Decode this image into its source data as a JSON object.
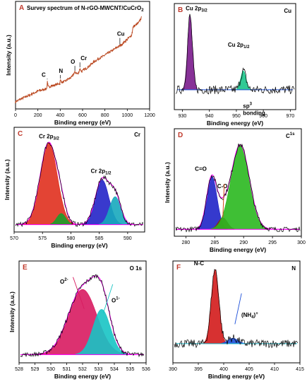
{
  "chart_data": [
    {
      "panel": "A",
      "type": "line",
      "title": "Survey spectrum of N-rGO-MWCNT/CuCrO2",
      "title_parts": [
        "Survey spectrum of N-rGO-MWCNT/CuCrO",
        "2"
      ],
      "xlabel": "Binding energy (eV)",
      "ylabel": "Intensity (a.u.)",
      "xlim": [
        0,
        1200
      ],
      "xticks": [
        0,
        200,
        400,
        600,
        800,
        1000,
        1200
      ],
      "x": [
        0,
        50,
        100,
        150,
        200,
        250,
        280,
        284,
        290,
        350,
        397,
        400,
        420,
        500,
        530,
        560,
        576,
        590,
        650,
        700,
        750,
        800,
        850,
        900,
        950,
        1000,
        1040,
        1050,
        1100,
        1130
      ],
      "values": [
        0.02,
        0.05,
        0.08,
        0.11,
        0.14,
        0.16,
        0.17,
        0.26,
        0.19,
        0.21,
        0.23,
        0.27,
        0.24,
        0.3,
        0.36,
        0.34,
        0.4,
        0.37,
        0.42,
        0.48,
        0.52,
        0.56,
        0.6,
        0.64,
        0.68,
        0.74,
        0.79,
        0.88,
        0.93,
        1.0
      ],
      "annotations": [
        {
          "label": "C",
          "x": 284
        },
        {
          "label": "N",
          "x": 400
        },
        {
          "label": "O",
          "x": 531
        },
        {
          "label": "Cr",
          "x": 576
        },
        {
          "label": "Cu",
          "x": 934
        }
      ],
      "colors": {
        "line": "#c0502a",
        "accent": "#b5471f"
      }
    },
    {
      "panel": "B",
      "type": "line",
      "element": "Cu",
      "xlabel": "Binding energy (eV)",
      "xlim": [
        927,
        972
      ],
      "xticks": [
        930,
        940,
        950,
        960,
        970
      ],
      "peaks": [
        {
          "label_parts": [
            "Cu 2p",
            "3/2"
          ],
          "center": 932.8,
          "height": 0.78,
          "width": 0.9,
          "color": "#7a1b8c"
        },
        {
          "label_parts": [
            "Cu 2p",
            "1/2"
          ],
          "center": 952.6,
          "height": 0.2,
          "width": 1.0,
          "color": "#19c48a"
        }
      ],
      "baseline": 0.3,
      "colors": {
        "baseline": "#1f4fd6",
        "data": "#000000"
      }
    },
    {
      "panel": "C",
      "type": "line",
      "element": "Cr",
      "xlabel": "Binding energy (eV)",
      "ylabel": "Intensity (a.u.)",
      "xlim": [
        570,
        593
      ],
      "xticks": [
        570,
        575,
        580,
        585,
        590
      ],
      "peaks": [
        {
          "label_parts": [
            "Cr 2p",
            "3/2"
          ],
          "center": 576.1,
          "height": 0.88,
          "width": 1.5,
          "color": "#e0301e"
        },
        {
          "center": 578.3,
          "height": 0.12,
          "width": 0.8,
          "color": "#1a9e2a"
        },
        {
          "label_parts": [
            "Cr 2p",
            "1/2"
          ],
          "center": 585.5,
          "height": 0.48,
          "width": 1.2,
          "color": "#2424c8"
        },
        {
          "center": 587.8,
          "height": 0.3,
          "width": 1.0,
          "color": "#17a9bd"
        }
      ],
      "baseline": 0.06,
      "colors": {
        "envelope": "#ff00ff",
        "data": "#000000"
      }
    },
    {
      "panel": "D",
      "type": "line",
      "element": "C 1s",
      "element_parts": [
        "C",
        "1s"
      ],
      "xlabel": "Binding energy (eV)",
      "ylabel": "Intensity (a.u.)",
      "xlim": [
        278,
        300
      ],
      "xticks": [
        280,
        285,
        290,
        295,
        300
      ],
      "peaks": [
        {
          "label": "C=O",
          "center": 284.5,
          "height": 0.55,
          "width": 0.9,
          "color": "#1f24c8"
        },
        {
          "label": "C-O",
          "center": 286.4,
          "height": 0.12,
          "width": 0.8,
          "color": "#8b2b12"
        },
        {
          "label_parts": [
            "sp",
            "3",
            " bonding"
          ],
          "center": 289.4,
          "height": 0.88,
          "width": 1.6,
          "color": "#2ab81f"
        }
      ],
      "baseline": 0.05,
      "colors": {
        "envelope": "#ff00ff",
        "data": "#000000",
        "arrow": "#d04a1a"
      }
    },
    {
      "panel": "E",
      "type": "line",
      "element": "O 1s",
      "xlabel": "Binding energy (eV)",
      "ylabel": "Intensity (a.u.)",
      "xlim": [
        528,
        536
      ],
      "xticks": [
        528,
        529,
        530,
        531,
        532,
        533,
        534,
        535,
        536
      ],
      "peaks": [
        {
          "label_parts": [
            "O",
            "2-"
          ],
          "center": 532.0,
          "height": 0.72,
          "width": 0.9,
          "color": "#d81b60"
        },
        {
          "label_parts": [
            "O",
            "1-"
          ],
          "center": 533.2,
          "height": 0.5,
          "width": 0.55,
          "color": "#17c4c4"
        }
      ],
      "baseline": 0.08,
      "colors": {
        "envelope": "#ff00ff",
        "data": "#000000"
      }
    },
    {
      "panel": "F",
      "type": "line",
      "element": "N",
      "xlabel": "Binding energy (eV)",
      "xlim": [
        390,
        415
      ],
      "xticks": [
        390,
        395,
        400,
        405,
        410,
        415
      ],
      "peaks": [
        {
          "label": "N-C",
          "center": 398.3,
          "height": 0.82,
          "width": 0.75,
          "color": "#d31b1b"
        },
        {
          "label_parts": [
            "(NH",
            "4",
            ")",
            "+"
          ],
          "center": 401.8,
          "height": 0.06,
          "width": 1.0,
          "color": "#1c4fd9"
        }
      ],
      "baseline": 0.3,
      "colors": {
        "baseline": "#17b7c7",
        "data": "#000000"
      }
    }
  ]
}
